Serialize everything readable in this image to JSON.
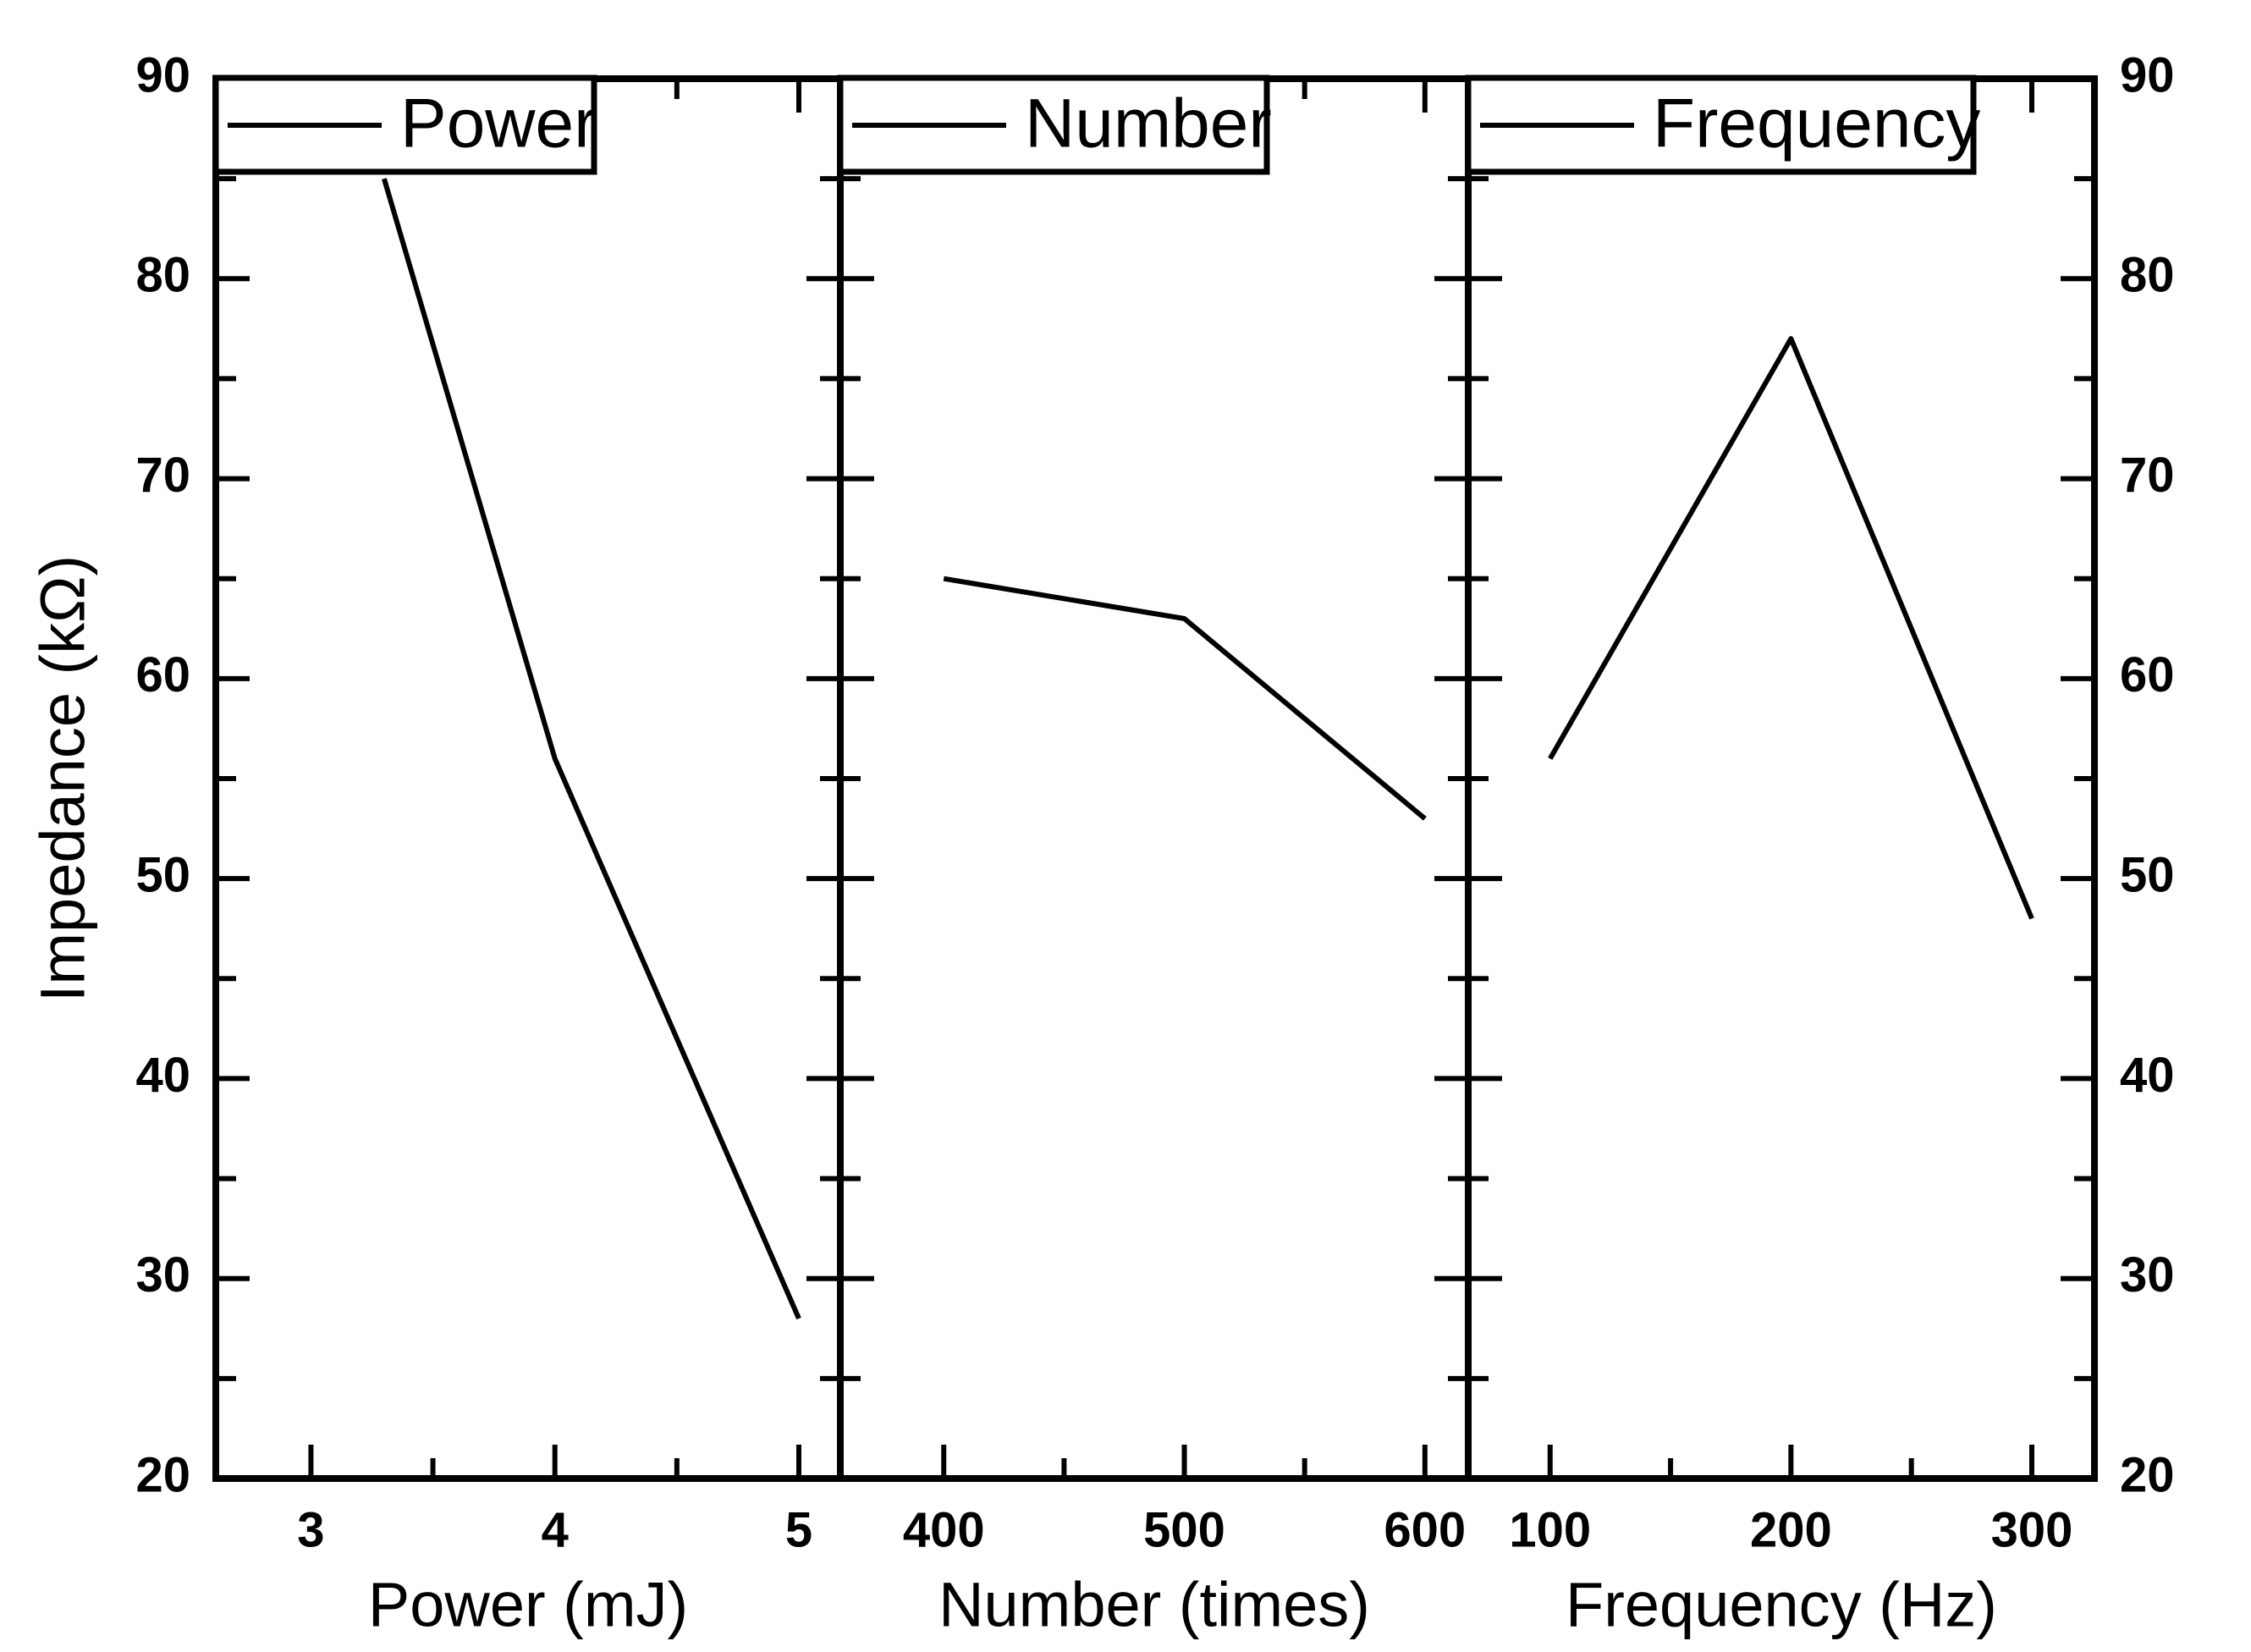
{
  "figure": {
    "type_note": "three-panel line figure, black on white",
    "background_color": "#ffffff",
    "line_color": "#000000"
  },
  "chart_data": {
    "type": "line",
    "title": "",
    "ylabel": "Impedance (kΩ)",
    "y_axis": {
      "min": 20,
      "max": 90,
      "major_step": 10,
      "minor_step": 5,
      "tick_labels": [
        "20",
        "30",
        "40",
        "50",
        "60",
        "70",
        "80",
        "90"
      ],
      "labels_on_left": true,
      "labels_on_right": true
    },
    "grid": false,
    "legend_position": "top-left inside each panel, boxed",
    "panels": [
      {
        "id": "power",
        "legend": "Power",
        "xlabel": "Power (mJ)",
        "x_ticks": [
          3,
          4,
          5
        ],
        "x_tick_labels": [
          "3",
          "4",
          "5"
        ],
        "x_minor_ticks": [
          3.5,
          4.5
        ],
        "x_range": [
          2.61,
          5.17
        ],
        "points": [
          [
            3.3,
            85
          ],
          [
            4,
            56
          ],
          [
            5,
            28
          ]
        ],
        "note": "first point emerges from under legend box at ~(3.3, 85); line falls steeply to 56 at 4 mJ, then to 28 at 5 mJ"
      },
      {
        "id": "number",
        "legend": "Number",
        "xlabel": "Number (times)",
        "x_ticks": [
          400,
          500,
          600
        ],
        "x_tick_labels": [
          "400",
          "500",
          "600"
        ],
        "x_minor_ticks": [
          450,
          550
        ],
        "x_range": [
          357,
          618
        ],
        "points": [
          [
            400,
            65
          ],
          [
            500,
            63
          ],
          [
            600,
            53
          ]
        ]
      },
      {
        "id": "frequency",
        "legend": "Frequency",
        "xlabel": "Frequency (Hz)",
        "x_ticks": [
          100,
          200,
          300
        ],
        "x_tick_labels": [
          "100",
          "200",
          "300"
        ],
        "x_minor_ticks": [
          150,
          250
        ],
        "x_range": [
          66,
          326
        ],
        "points": [
          [
            100,
            56
          ],
          [
            200,
            77
          ],
          [
            300,
            48
          ]
        ]
      }
    ]
  }
}
